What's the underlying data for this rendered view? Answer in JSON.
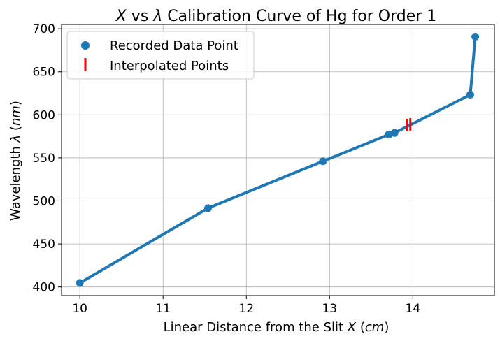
{
  "chart_data": {
    "type": "line",
    "title": {
      "var_x": "X",
      "mid": " vs ",
      "var_lambda": "λ",
      "rest": " Calibration Curve of Hg for Order 1"
    },
    "xlabel": {
      "text": "Linear Distance from the Slit ",
      "var": "X",
      "open": " (",
      "unit": "cm",
      "close": ")"
    },
    "ylabel": {
      "text": "Wavelength ",
      "var": "λ",
      "open": " (",
      "unit": "nm",
      "close": ")"
    },
    "xlim": [
      9.78,
      14.98
    ],
    "ylim": [
      390,
      705
    ],
    "xticks": [
      10,
      11,
      12,
      13,
      14
    ],
    "yticks": [
      400,
      450,
      500,
      550,
      600,
      650,
      700
    ],
    "grid": true,
    "legend_position": "top-left",
    "series": [
      {
        "name": "Recorded Data Point",
        "marker": "circle",
        "color": "#1f77b4",
        "x": [
          10.0,
          11.54,
          12.92,
          13.71,
          13.78,
          14.69,
          14.75
        ],
        "y": [
          404.7,
          491.6,
          546.1,
          577.0,
          579.0,
          623.4,
          690.8
        ]
      },
      {
        "name": "Interpolated Points",
        "marker": "vline",
        "color": "#ff0000",
        "x": [
          13.93,
          13.97
        ],
        "y": [
          588.0,
          589.0
        ]
      }
    ]
  }
}
